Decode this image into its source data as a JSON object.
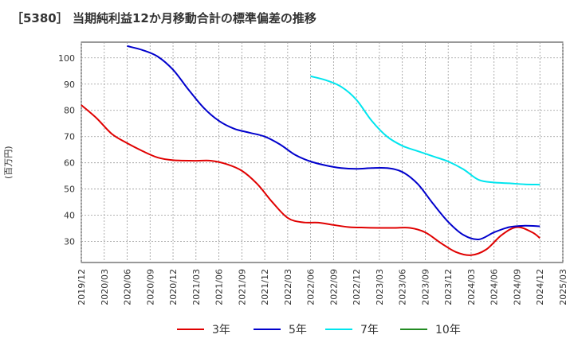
{
  "chart_data": {
    "type": "line",
    "title": "［5380］ 当期純利益12か月移動合計の標準偏差の推移",
    "xlabel": "",
    "ylabel": "(百万円)",
    "ylim": [
      22,
      106
    ],
    "yticks": [
      30,
      40,
      50,
      60,
      70,
      80,
      90,
      100
    ],
    "x_range": [
      "2019-12",
      "2025-03"
    ],
    "x_ticks": [
      "2019/12",
      "2020/03",
      "2020/06",
      "2020/09",
      "2020/12",
      "2021/03",
      "2021/06",
      "2021/09",
      "2021/12",
      "2022/03",
      "2022/06",
      "2022/09",
      "2022/12",
      "2023/03",
      "2023/06",
      "2023/09",
      "2023/12",
      "2024/03",
      "2024/06",
      "2024/09",
      "2024/12",
      "2025/03"
    ],
    "grid": true,
    "legend_position": "bottom",
    "series": [
      {
        "name": "3年",
        "color": "#e00000",
        "points": [
          [
            "2019-12",
            82
          ],
          [
            "2020-02",
            77
          ],
          [
            "2020-04",
            71
          ],
          [
            "2020-06",
            67.5
          ],
          [
            "2020-08",
            64.5
          ],
          [
            "2020-10",
            62
          ],
          [
            "2020-12",
            61
          ],
          [
            "2021-03",
            60.8
          ],
          [
            "2021-05",
            60.8
          ],
          [
            "2021-07",
            59.5
          ],
          [
            "2021-09",
            57
          ],
          [
            "2021-11",
            52
          ],
          [
            "2022-01",
            45
          ],
          [
            "2022-03",
            39
          ],
          [
            "2022-05",
            37.3
          ],
          [
            "2022-07",
            37.2
          ],
          [
            "2022-09",
            36.3
          ],
          [
            "2022-11",
            35.5
          ],
          [
            "2023-01",
            35.3
          ],
          [
            "2023-03",
            35.2
          ],
          [
            "2023-05",
            35.2
          ],
          [
            "2023-07",
            35.2
          ],
          [
            "2023-09",
            33.5
          ],
          [
            "2023-11",
            29.5
          ],
          [
            "2024-01",
            26
          ],
          [
            "2024-03",
            24.8
          ],
          [
            "2024-05",
            27
          ],
          [
            "2024-07",
            32.5
          ],
          [
            "2024-09",
            35.5
          ],
          [
            "2024-11",
            33.5
          ],
          [
            "2024-12",
            31.3
          ]
        ]
      },
      {
        "name": "5年",
        "color": "#0000cc",
        "points": [
          [
            "2020-06",
            104.5
          ],
          [
            "2020-08",
            103
          ],
          [
            "2020-10",
            100.5
          ],
          [
            "2020-12",
            95.5
          ],
          [
            "2021-02",
            88
          ],
          [
            "2021-04",
            81
          ],
          [
            "2021-06",
            76
          ],
          [
            "2021-08",
            73
          ],
          [
            "2021-10",
            71.5
          ],
          [
            "2021-12",
            70
          ],
          [
            "2022-02",
            67
          ],
          [
            "2022-04",
            63
          ],
          [
            "2022-06",
            60.5
          ],
          [
            "2022-08",
            59
          ],
          [
            "2022-10",
            58
          ],
          [
            "2022-12",
            57.7
          ],
          [
            "2023-02",
            58
          ],
          [
            "2023-04",
            58
          ],
          [
            "2023-06",
            56.5
          ],
          [
            "2023-08",
            52
          ],
          [
            "2023-10",
            44.5
          ],
          [
            "2023-12",
            37.5
          ],
          [
            "2024-02",
            32.5
          ],
          [
            "2024-04",
            30.8
          ],
          [
            "2024-06",
            33.5
          ],
          [
            "2024-08",
            35.5
          ],
          [
            "2024-10",
            36
          ],
          [
            "2024-12",
            35.8
          ]
        ]
      },
      {
        "name": "7年",
        "color": "#00e5ee",
        "points": [
          [
            "2022-06",
            93
          ],
          [
            "2022-08",
            91.5
          ],
          [
            "2022-10",
            89
          ],
          [
            "2022-12",
            84
          ],
          [
            "2023-02",
            76
          ],
          [
            "2023-04",
            70
          ],
          [
            "2023-06",
            66.5
          ],
          [
            "2023-08",
            64.5
          ],
          [
            "2023-10",
            62.5
          ],
          [
            "2023-12",
            60.5
          ],
          [
            "2024-02",
            57.5
          ],
          [
            "2024-04",
            53.5
          ],
          [
            "2024-06",
            52.5
          ],
          [
            "2024-08",
            52.2
          ],
          [
            "2024-10",
            51.8
          ],
          [
            "2024-12",
            51.7
          ]
        ]
      },
      {
        "name": "10年",
        "color": "#228b22",
        "points": []
      }
    ]
  }
}
